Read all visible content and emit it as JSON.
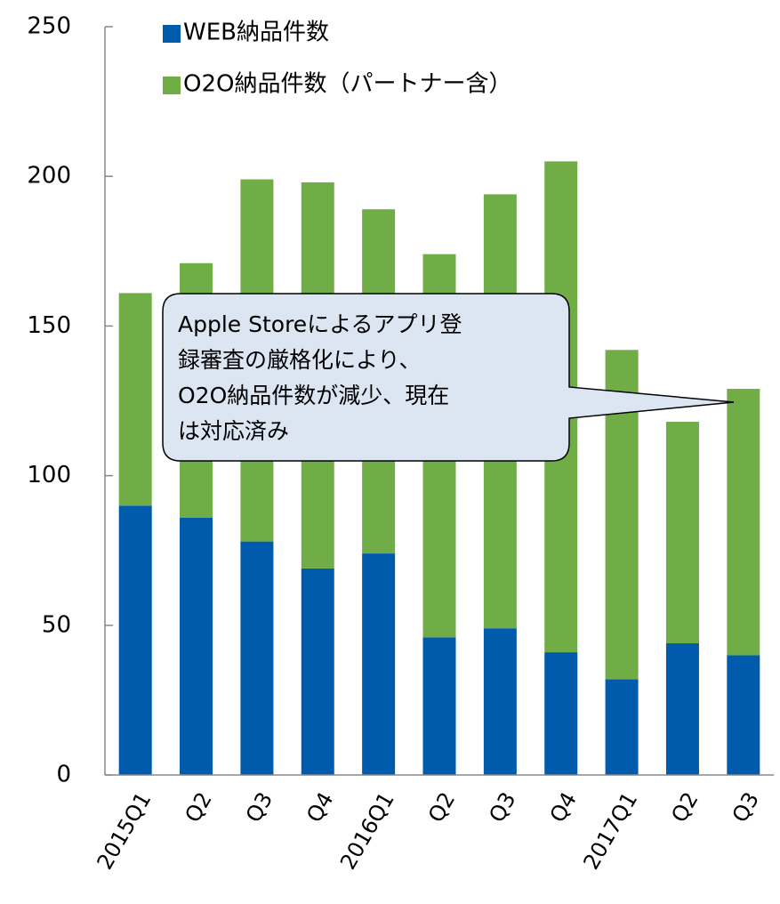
{
  "chart_data": {
    "type": "stacked_bar",
    "categories": [
      "2015Q1",
      "Q2",
      "Q3",
      "Q4",
      "2016Q1",
      "Q2",
      "Q3",
      "Q4",
      "2017Q1",
      "Q2",
      "Q3"
    ],
    "series": [
      {
        "name": "WEB納品件数",
        "color": "#005bac",
        "values": [
          90,
          86,
          78,
          69,
          74,
          46,
          49,
          41,
          32,
          44,
          40
        ]
      },
      {
        "name": "O2O納品件数（パートナー含）",
        "color": "#70ad47",
        "values": [
          71,
          85,
          121,
          129,
          115,
          128,
          145,
          164,
          110,
          74,
          89
        ]
      }
    ],
    "ylim": [
      0,
      250
    ],
    "yticks": [
      0,
      50,
      100,
      150,
      200,
      250
    ],
    "annotation": [
      "Apple Storeによるアプリ登",
      "録審査の厳格化により、",
      "O2O納品件数が減少、現在",
      "は対応済み"
    ]
  }
}
